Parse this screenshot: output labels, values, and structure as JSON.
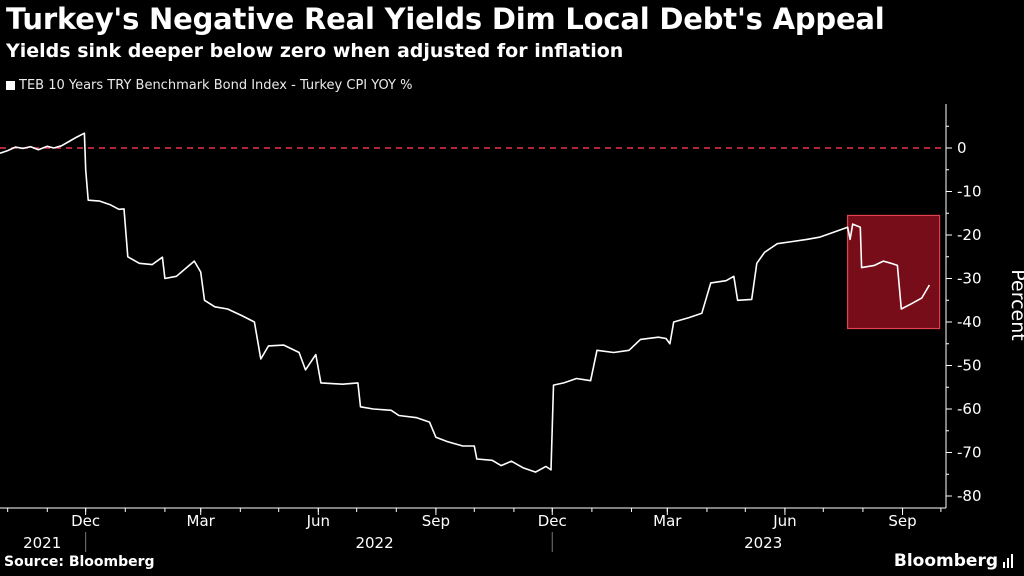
{
  "header": {
    "title": "Turkey's Negative Real Yields Dim Local Debt's Appeal",
    "subtitle": "Yields sink deeper below zero when adjusted for inflation"
  },
  "footer": {
    "source": "Source: Bloomberg",
    "brand": "Bloomberg"
  },
  "colors": {
    "background": "#000000",
    "line": "#ffffff",
    "zero_line": "#e8334a",
    "highlight_fill": "#8b0f1c",
    "highlight_stroke": "#e04050"
  },
  "chart_data": {
    "type": "line",
    "title": "Turkey's Negative Real Yields Dim Local Debt's Appeal",
    "subtitle": "Yields sink deeper below zero when adjusted for inflation",
    "ylabel": "Percent",
    "ylim": [
      -80,
      10
    ],
    "y_ticks": [
      0,
      -10,
      -20,
      -30,
      -40,
      -50,
      -60,
      -70,
      -80
    ],
    "y_tick_labels": [
      "0",
      "-10",
      "-20",
      "-30",
      "-40",
      "-50",
      "-60",
      "-70",
      "-80"
    ],
    "x_range": [
      "2021-09-25",
      "2023-10-05"
    ],
    "x_ticks": [
      {
        "date": "2021-12-01",
        "label": "Dec"
      },
      {
        "date": "2022-03-01",
        "label": "Mar"
      },
      {
        "date": "2022-06-01",
        "label": "Jun"
      },
      {
        "date": "2022-09-01",
        "label": "Sep"
      },
      {
        "date": "2022-12-01",
        "label": "Dec"
      },
      {
        "date": "2023-03-01",
        "label": "Mar"
      },
      {
        "date": "2023-06-01",
        "label": "Jun"
      },
      {
        "date": "2023-09-01",
        "label": "Sep"
      }
    ],
    "year_labels": [
      {
        "date": "2021-10-28",
        "label": "2021"
      },
      {
        "date": "2022-07-15",
        "label": "2022"
      },
      {
        "date": "2023-05-15",
        "label": "2023"
      }
    ],
    "year_separators": [
      "2021-12-01",
      "2022-12-01"
    ],
    "reference_lines": [
      {
        "y": 0,
        "style": "dashed"
      }
    ],
    "highlight": {
      "x_start": "2023-07-20",
      "x_end": "2023-09-30",
      "y_top": -15.5,
      "y_bottom": -41.5
    },
    "series": [
      {
        "name": "TEB 10 Years TRY Benchmark Bond Index - Turkey CPI YOY %",
        "points": [
          [
            "2021-09-25",
            -1.2
          ],
          [
            "2021-10-01",
            -0.6
          ],
          [
            "2021-10-07",
            0.2
          ],
          [
            "2021-10-13",
            -0.1
          ],
          [
            "2021-10-19",
            0.3
          ],
          [
            "2021-10-25",
            -0.4
          ],
          [
            "2021-11-01",
            0.4
          ],
          [
            "2021-11-06",
            0.0
          ],
          [
            "2021-11-12",
            0.5
          ],
          [
            "2021-11-18",
            1.5
          ],
          [
            "2021-11-24",
            2.5
          ],
          [
            "2021-11-30",
            3.4
          ],
          [
            "2021-12-01",
            -5.0
          ],
          [
            "2021-12-03",
            -12.0
          ],
          [
            "2021-12-12",
            -12.2
          ],
          [
            "2021-12-20",
            -13.0
          ],
          [
            "2021-12-27",
            -14.1
          ],
          [
            "2021-12-31",
            -14.0
          ],
          [
            "2022-01-03",
            -25.0
          ],
          [
            "2022-01-12",
            -26.5
          ],
          [
            "2022-01-22",
            -26.8
          ],
          [
            "2022-01-30",
            -25.1
          ],
          [
            "2022-02-01",
            -30.0
          ],
          [
            "2022-02-10",
            -29.5
          ],
          [
            "2022-02-18",
            -27.5
          ],
          [
            "2022-02-24",
            -26.0
          ],
          [
            "2022-03-01",
            -28.5
          ],
          [
            "2022-03-04",
            -35.0
          ],
          [
            "2022-03-12",
            -36.5
          ],
          [
            "2022-03-22",
            -37.0
          ],
          [
            "2022-04-02",
            -38.5
          ],
          [
            "2022-04-12",
            -40.0
          ],
          [
            "2022-04-17",
            -48.5
          ],
          [
            "2022-04-23",
            -45.5
          ],
          [
            "2022-05-05",
            -45.3
          ],
          [
            "2022-05-17",
            -47.0
          ],
          [
            "2022-05-22",
            -51.0
          ],
          [
            "2022-05-30",
            -47.5
          ],
          [
            "2022-06-03",
            -54.0
          ],
          [
            "2022-06-20",
            -54.3
          ],
          [
            "2022-07-02",
            -54.0
          ],
          [
            "2022-07-04",
            -59.5
          ],
          [
            "2022-07-14",
            -60.0
          ],
          [
            "2022-07-28",
            -60.3
          ],
          [
            "2022-08-03",
            -61.5
          ],
          [
            "2022-08-17",
            -62.0
          ],
          [
            "2022-08-27",
            -63.0
          ],
          [
            "2022-09-01",
            -66.5
          ],
          [
            "2022-09-10",
            -67.5
          ],
          [
            "2022-09-22",
            -68.5
          ],
          [
            "2022-10-01",
            -68.5
          ],
          [
            "2022-10-03",
            -71.5
          ],
          [
            "2022-10-15",
            -71.8
          ],
          [
            "2022-10-22",
            -73.0
          ],
          [
            "2022-10-30",
            -72.0
          ],
          [
            "2022-11-08",
            -73.5
          ],
          [
            "2022-11-18",
            -74.5
          ],
          [
            "2022-11-26",
            -73.2
          ],
          [
            "2022-11-30",
            -74.0
          ],
          [
            "2022-12-02",
            -54.5
          ],
          [
            "2022-12-10",
            -54.0
          ],
          [
            "2022-12-20",
            -53.0
          ],
          [
            "2022-12-31",
            -53.5
          ],
          [
            "2023-01-05",
            -46.5
          ],
          [
            "2023-01-18",
            -47.0
          ],
          [
            "2023-01-30",
            -46.5
          ],
          [
            "2023-02-08",
            -44.0
          ],
          [
            "2023-02-22",
            -43.5
          ],
          [
            "2023-02-28",
            -43.8
          ],
          [
            "2023-03-03",
            -45.0
          ],
          [
            "2023-03-06",
            -40.0
          ],
          [
            "2023-03-18",
            -39.0
          ],
          [
            "2023-03-28",
            -38.0
          ],
          [
            "2023-04-04",
            -31.0
          ],
          [
            "2023-04-16",
            -30.5
          ],
          [
            "2023-04-22",
            -29.5
          ],
          [
            "2023-04-25",
            -35.0
          ],
          [
            "2023-05-06",
            -34.8
          ],
          [
            "2023-05-10",
            -26.5
          ],
          [
            "2023-05-16",
            -24.0
          ],
          [
            "2023-05-26",
            -22.0
          ],
          [
            "2023-06-07",
            -21.5
          ],
          [
            "2023-06-18",
            -21.0
          ],
          [
            "2023-06-28",
            -20.5
          ],
          [
            "2023-07-08",
            -19.5
          ],
          [
            "2023-07-20",
            -18.2
          ],
          [
            "2023-07-22",
            -21.0
          ],
          [
            "2023-07-24",
            -17.5
          ],
          [
            "2023-07-30",
            -18.2
          ],
          [
            "2023-07-31",
            -27.5
          ],
          [
            "2023-08-10",
            -27.0
          ],
          [
            "2023-08-17",
            -26.0
          ],
          [
            "2023-08-23",
            -26.5
          ],
          [
            "2023-08-28",
            -27.0
          ],
          [
            "2023-08-31",
            -37.0
          ],
          [
            "2023-09-08",
            -35.8
          ],
          [
            "2023-09-16",
            -34.5
          ],
          [
            "2023-09-22",
            -31.5
          ]
        ]
      }
    ]
  }
}
